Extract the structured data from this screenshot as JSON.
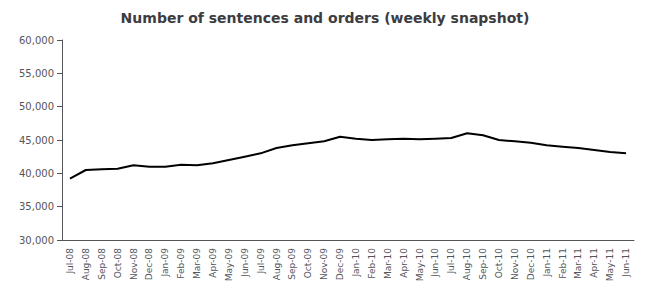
{
  "chart_data": {
    "type": "line",
    "title": "Number of sentences and orders (weekly snapshot)",
    "categories": [
      "Jul-08",
      "Aug-08",
      "Sep-08",
      "Oct-08",
      "Nov-08",
      "Dec-08",
      "Jan-09",
      "Feb-09",
      "Mar-09",
      "Apr-09",
      "May-09",
      "Jun-09",
      "Jul-09",
      "Aug-09",
      "Sep-09",
      "Oct-09",
      "Nov-09",
      "Dec-09",
      "Jan-10",
      "Feb-10",
      "Mar-10",
      "Apr-10",
      "May-10",
      "Jun-10",
      "Jul-10",
      "Aug-10",
      "Sep-10",
      "Oct-10",
      "Nov-10",
      "Dec-10",
      "Jan-11",
      "Feb-11",
      "Mar-11",
      "Apr-11",
      "May-11",
      "Jun-11"
    ],
    "values": [
      39200,
      40500,
      40600,
      40700,
      41200,
      41000,
      41000,
      41300,
      41200,
      41500,
      42000,
      42500,
      43000,
      43800,
      44200,
      44500,
      44800,
      45500,
      45200,
      45000,
      45100,
      45200,
      45100,
      45200,
      45300,
      46000,
      45700,
      45000,
      44800,
      44600,
      44200,
      44000,
      43800,
      43500,
      43200,
      43000
    ],
    "color": "#000000",
    "ylim": [
      30000,
      60000
    ],
    "yticks": [
      {
        "value": 30000,
        "label": "30,000"
      },
      {
        "value": 35000,
        "label": "35,000"
      },
      {
        "value": 40000,
        "label": "40,000"
      },
      {
        "value": 45000,
        "label": "45,000"
      },
      {
        "value": 50000,
        "label": "50,000"
      },
      {
        "value": 55000,
        "label": "55,000"
      },
      {
        "value": 60000,
        "label": "60,000"
      }
    ],
    "grid": false
  }
}
